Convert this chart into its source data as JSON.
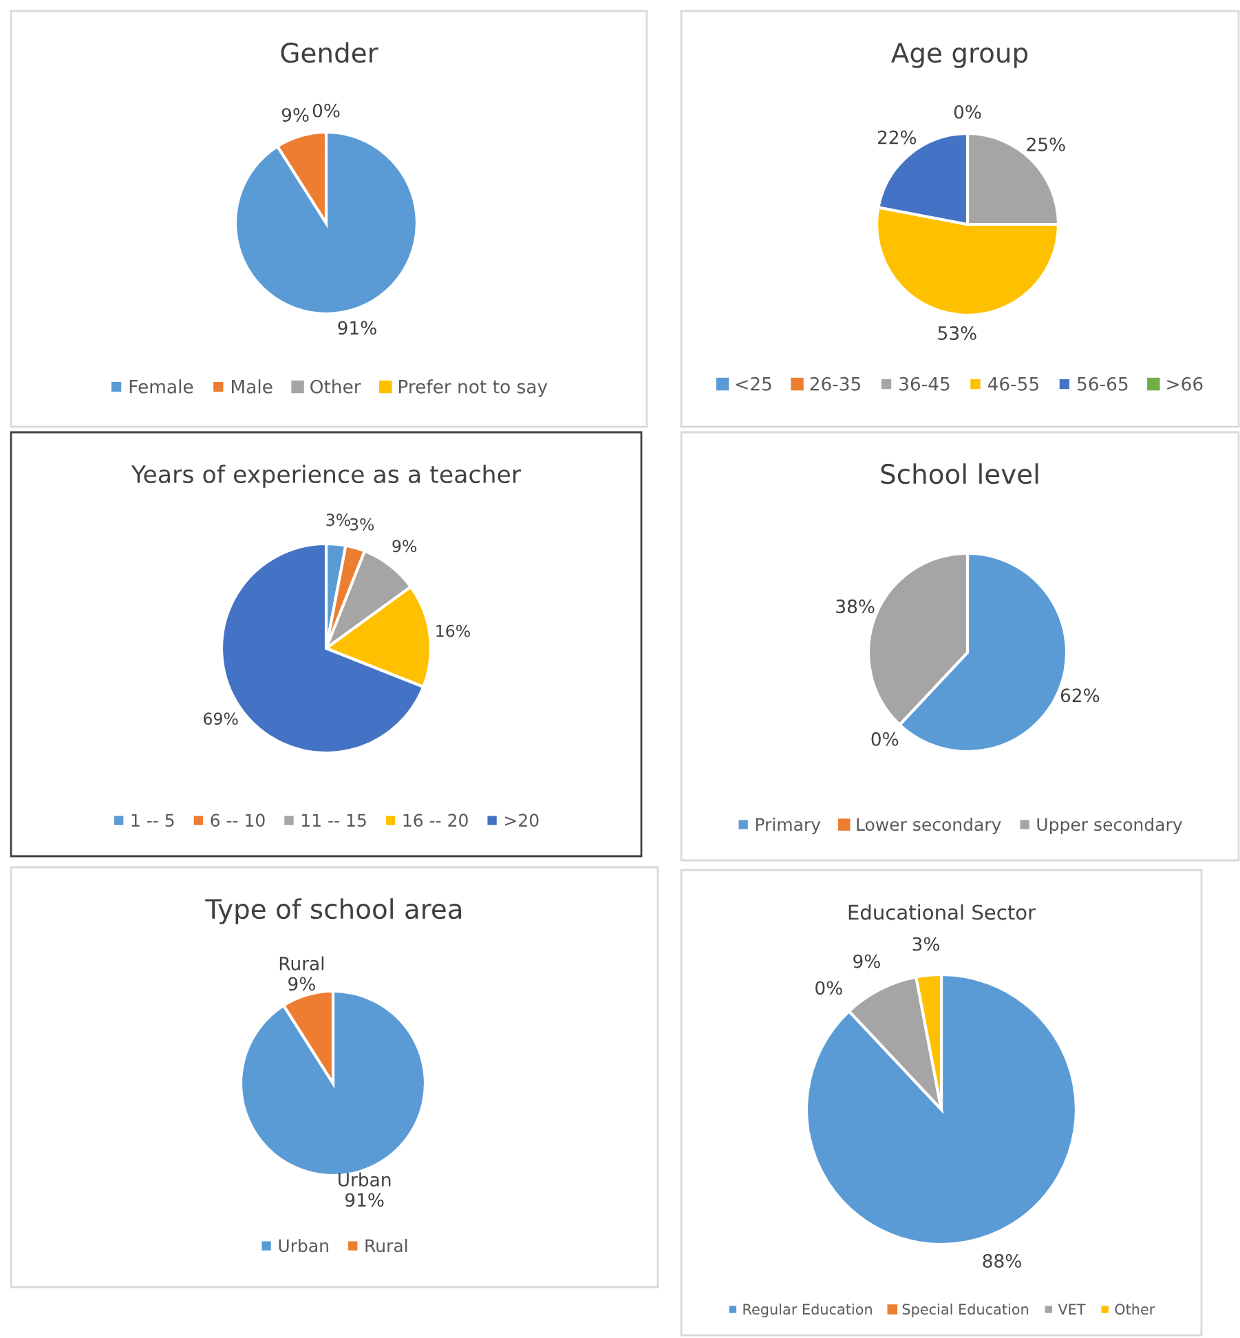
{
  "chart_data": [
    {
      "type": "pie",
      "title": "Gender",
      "categories": [
        "Female",
        "Male",
        "Other",
        "Prefer not to say"
      ],
      "values": [
        91,
        9,
        0,
        0
      ],
      "colors": [
        "#5b9bd5",
        "#ed7d31",
        "#a5a5a5",
        "#ffc000"
      ],
      "value_labels": [
        "91%",
        "9%",
        "0%",
        null
      ],
      "legend": "bottom"
    },
    {
      "type": "pie",
      "title": "Age group",
      "categories": [
        "<25",
        "26-35",
        "36-45",
        "46-55",
        "56-65",
        ">66"
      ],
      "values": [
        0,
        0,
        25,
        53,
        22,
        0
      ],
      "colors": [
        "#5b9bd5",
        "#ed7d31",
        "#a5a5a5",
        "#ffc000",
        "#4472c4",
        "#70ad47"
      ],
      "value_labels": [
        "0%",
        null,
        "25%",
        "53%",
        "22%",
        null
      ],
      "legend": "bottom"
    },
    {
      "type": "pie",
      "title": "Years of experience as a teacher",
      "categories": [
        "1 -- 5",
        "6 -- 10",
        "11 -- 15",
        "16 -- 20",
        ">20"
      ],
      "values": [
        3,
        3,
        9,
        16,
        69
      ],
      "colors": [
        "#5b9bd5",
        "#ed7d31",
        "#a5a5a5",
        "#ffc000",
        "#4472c4"
      ],
      "value_labels": [
        "3%",
        "3%",
        "9%",
        "16%",
        "69%"
      ],
      "legend": "bottom"
    },
    {
      "type": "pie",
      "title": "School level",
      "categories": [
        "Primary",
        "Lower secondary",
        "Upper secondary"
      ],
      "values": [
        62,
        0,
        38
      ],
      "colors": [
        "#5b9bd5",
        "#ed7d31",
        "#a5a5a5"
      ],
      "value_labels": [
        "62%",
        "0%",
        "38%"
      ],
      "legend": "bottom"
    },
    {
      "type": "pie",
      "title": "Type of school area",
      "categories": [
        "Urban",
        "Rural"
      ],
      "values": [
        91,
        9
      ],
      "colors": [
        "#5b9bd5",
        "#ed7d31"
      ],
      "value_labels": [
        "Urban\n91%",
        "Rural\n9%"
      ],
      "legend": "bottom"
    },
    {
      "type": "pie",
      "title": "Educational Sector",
      "categories": [
        "Regular Education",
        "Special Education",
        "VET",
        "Other"
      ],
      "values": [
        88,
        0,
        9,
        3
      ],
      "colors": [
        "#5b9bd5",
        "#ed7d31",
        "#a5a5a5",
        "#ffc000"
      ],
      "value_labels": [
        "88%",
        "0%",
        "9%",
        "3%"
      ],
      "legend": "bottom"
    }
  ]
}
